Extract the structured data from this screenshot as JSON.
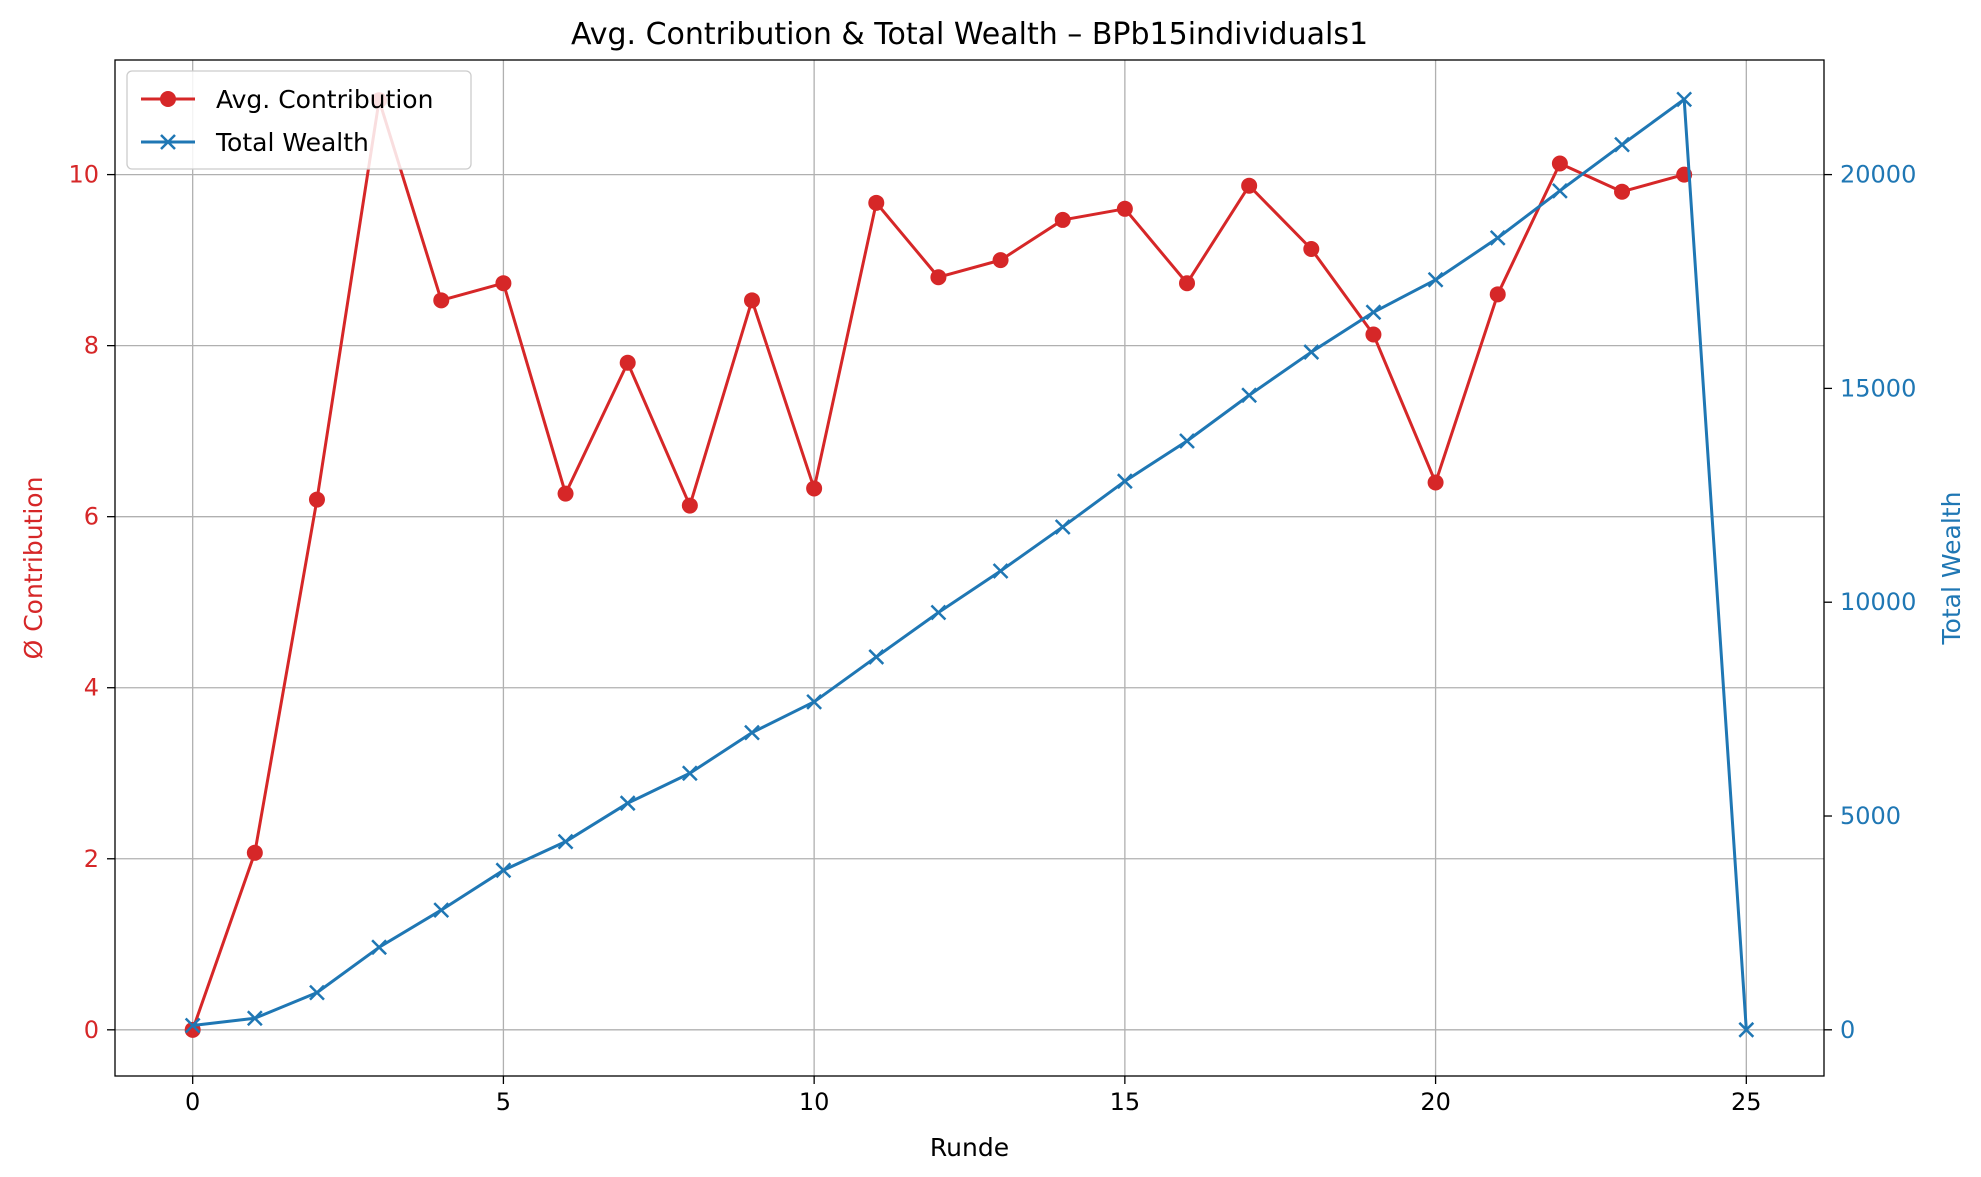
{
  "chart_data": {
    "type": "line",
    "title": "Avg. Contribution & Total Wealth – BPb15individuals1",
    "xlabel": "Runde",
    "ylabel_left": "Ø Contribution",
    "ylabel_right": "Total Wealth",
    "xlim": [
      -1.25,
      26.25
    ],
    "ylim_left": [
      -0.54,
      11.34
    ],
    "ylim_right": [
      -1080,
      22680
    ],
    "xticks": [
      0,
      5,
      10,
      15,
      20,
      25
    ],
    "yticks_left": [
      0,
      2,
      4,
      6,
      8,
      10
    ],
    "yticks_right": [
      0,
      5000,
      10000,
      15000,
      20000
    ],
    "grid": true,
    "legend_position": "top-left",
    "colors": {
      "left": "#d62728",
      "right": "#1f77b4",
      "grid": "#b0b0b0"
    },
    "x": [
      0,
      1,
      2,
      3,
      4,
      5,
      6,
      7,
      8,
      9,
      10,
      11,
      12,
      13,
      14,
      15,
      16,
      17,
      18,
      19,
      20,
      21,
      22,
      23,
      24,
      25
    ],
    "series": [
      {
        "name": "Avg. Contribution",
        "axis": "left",
        "marker": "circle",
        "x": [
          0,
          1,
          2,
          3,
          4,
          5,
          6,
          7,
          8,
          9,
          10,
          11,
          12,
          13,
          14,
          15,
          16,
          17,
          18,
          19,
          20,
          21,
          22,
          23,
          24
        ],
        "values": [
          0.0,
          2.07,
          6.2,
          10.87,
          8.53,
          8.73,
          6.27,
          7.8,
          6.13,
          8.53,
          6.33,
          9.67,
          8.8,
          9.0,
          9.47,
          9.6,
          8.73,
          9.87,
          9.13,
          8.13,
          6.4,
          8.6,
          10.13,
          9.8,
          10.0
        ]
      },
      {
        "name": "Total Wealth",
        "axis": "right",
        "marker": "x",
        "x": [
          0,
          1,
          2,
          3,
          4,
          5,
          6,
          7,
          8,
          9,
          10,
          11,
          12,
          13,
          14,
          15,
          16,
          17,
          18,
          19,
          20,
          21,
          22,
          23,
          24,
          25
        ],
        "values": [
          100,
          270,
          870,
          1930,
          2800,
          3730,
          4400,
          5300,
          6000,
          6950,
          7670,
          8720,
          9760,
          10730,
          11760,
          12830,
          13770,
          14840,
          15850,
          16780,
          17540,
          18520,
          19620,
          20700,
          21760,
          0
        ]
      }
    ]
  }
}
